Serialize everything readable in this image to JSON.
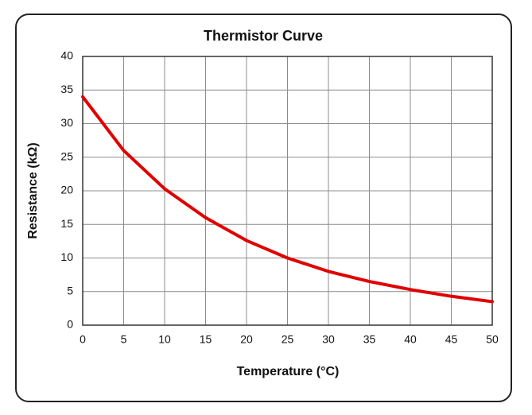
{
  "chart_data": {
    "type": "line",
    "title": "Thermistor Curve",
    "x_label": "Temperature (°C)",
    "y_label": "Resistance (kΩ)",
    "x": [
      0,
      5,
      10,
      15,
      20,
      25,
      30,
      35,
      40,
      45,
      50
    ],
    "series": [
      {
        "name": "Resistance",
        "color": "#e00000",
        "values": [
          34,
          26,
          20.3,
          16,
          12.6,
          10,
          8,
          6.5,
          5.3,
          4.3,
          3.5
        ]
      }
    ],
    "xlim": [
      0,
      50
    ],
    "xticks": [
      0,
      5,
      10,
      15,
      20,
      25,
      30,
      35,
      40,
      45,
      50
    ],
    "ylim": [
      0,
      40
    ],
    "yticks": [
      0,
      5,
      10,
      15,
      20,
      25,
      30,
      35,
      40
    ],
    "grid": true,
    "legend": false
  }
}
